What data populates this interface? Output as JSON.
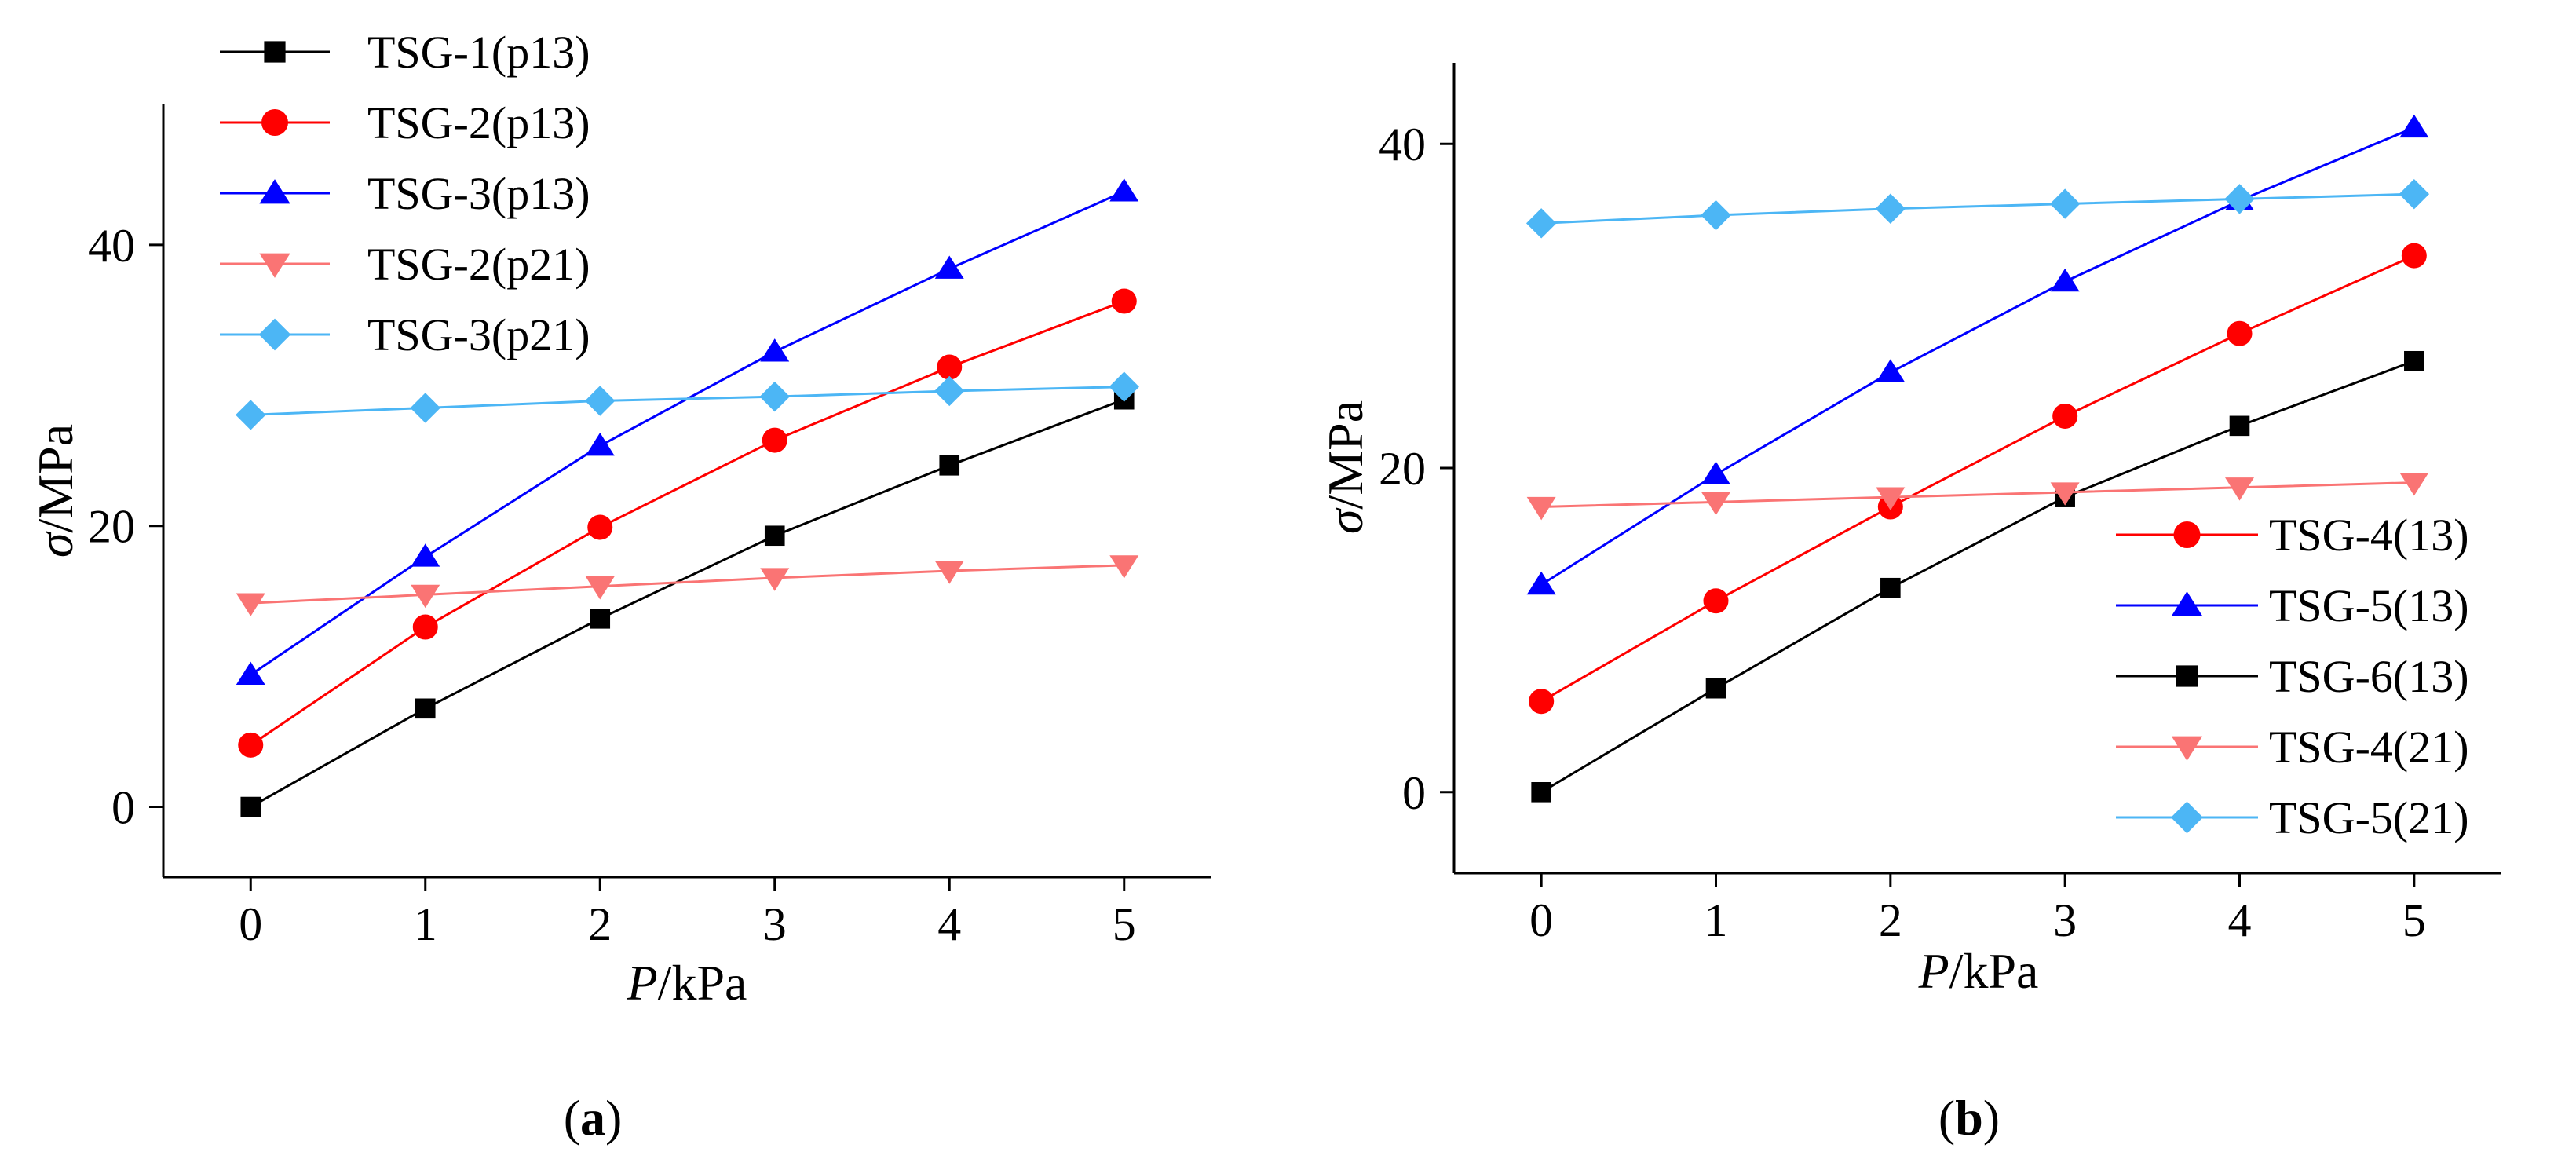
{
  "panel_labels": {
    "a_open": "(",
    "a_letter": "a",
    "a_close": ")",
    "b_open": "(",
    "b_letter": "b",
    "b_close": ")"
  },
  "chart_data": [
    {
      "id": "a",
      "type": "line",
      "xlabel_italic": "P",
      "xlabel_unit": "/kPa",
      "ylabel_italic": "σ",
      "ylabel_unit": "/MPa",
      "xlim": [
        -0.5,
        5.5
      ],
      "ylim": [
        -5,
        50
      ],
      "x_ticks": [
        0,
        1,
        2,
        3,
        4,
        5
      ],
      "x_tick_labels": [
        "0",
        "1",
        "2",
        "3",
        "4",
        "5"
      ],
      "y_ticks": [
        0,
        20,
        40
      ],
      "y_tick_labels": [
        "0",
        "20",
        "40"
      ],
      "legend_position": "top-left, outside",
      "x": [
        0,
        1,
        2,
        3,
        4,
        5
      ],
      "series": [
        {
          "name": "TSG-1(p13)",
          "color": "#000000",
          "marker": "square",
          "values": [
            0.0,
            7.0,
            13.4,
            19.3,
            24.3,
            29.0
          ]
        },
        {
          "name": "TSG-2(p13)",
          "color": "#ff0000",
          "marker": "circle",
          "values": [
            4.4,
            12.8,
            19.9,
            26.1,
            31.3,
            36.0
          ]
        },
        {
          "name": "TSG-3(p13)",
          "color": "#0000ff",
          "marker": "triangle-up",
          "values": [
            9.4,
            17.8,
            25.7,
            32.4,
            38.3,
            43.8
          ]
        },
        {
          "name": "TSG-2(p21)",
          "color": "#fa7474",
          "marker": "triangle-down",
          "values": [
            14.5,
            15.1,
            15.7,
            16.3,
            16.8,
            17.2
          ]
        },
        {
          "name": "TSG-3(p21)",
          "color": "#4cb6f5",
          "marker": "diamond",
          "values": [
            27.9,
            28.4,
            28.9,
            29.2,
            29.6,
            29.9
          ]
        }
      ]
    },
    {
      "id": "b",
      "type": "line",
      "xlabel_italic": "P",
      "xlabel_unit": "/kPa",
      "ylabel_italic": "σ",
      "ylabel_unit": "/MPa",
      "xlim": [
        -0.5,
        5.5
      ],
      "ylim": [
        -5,
        45
      ],
      "x_ticks": [
        0,
        1,
        2,
        3,
        4,
        5
      ],
      "x_tick_labels": [
        "0",
        "1",
        "2",
        "3",
        "4",
        "5"
      ],
      "y_ticks": [
        0,
        20,
        40
      ],
      "y_tick_labels": [
        "0",
        "20",
        "40"
      ],
      "legend_position": "bottom-right",
      "x": [
        0,
        1,
        2,
        3,
        4,
        5
      ],
      "series": [
        {
          "name": "TSG-4(13)",
          "color": "#ff0000",
          "marker": "circle",
          "values": [
            5.6,
            11.8,
            17.6,
            23.2,
            28.3,
            33.1
          ]
        },
        {
          "name": "TSG-5(13)",
          "color": "#0000ff",
          "marker": "triangle-up",
          "values": [
            12.8,
            19.6,
            25.9,
            31.5,
            36.5,
            41.0
          ]
        },
        {
          "name": "TSG-6(13)",
          "color": "#000000",
          "marker": "square",
          "values": [
            0.0,
            6.4,
            12.6,
            18.2,
            22.6,
            26.6
          ]
        },
        {
          "name": "TSG-4(21)",
          "color": "#fa7474",
          "marker": "triangle-down",
          "values": [
            17.6,
            17.9,
            18.2,
            18.5,
            18.8,
            19.1
          ]
        },
        {
          "name": "TSG-5(21)",
          "color": "#4cb6f5",
          "marker": "diamond",
          "values": [
            35.1,
            35.6,
            36.0,
            36.3,
            36.6,
            36.9
          ]
        }
      ]
    }
  ]
}
